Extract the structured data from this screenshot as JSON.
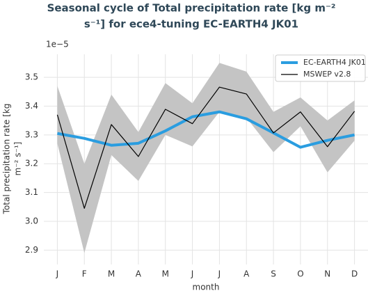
{
  "chart_data": {
    "type": "line",
    "title": [
      "Seasonal cycle of Total precipitation rate [kg m⁻²",
      "s⁻¹] for ece4-tuning EC-EARTH4 JK01"
    ],
    "x_label": "month",
    "y_label": [
      "Total precipitation rate [kg",
      "m⁻² s⁻¹]"
    ],
    "y_offset_label": "1e−5",
    "categories": [
      "J",
      "F",
      "M",
      "A",
      "M",
      "J",
      "J",
      "A",
      "S",
      "O",
      "N",
      "D"
    ],
    "series": [
      {
        "name": "EC-EARTH4 JK01",
        "color": "#2a9de0",
        "width": 4,
        "values": [
          3.305,
          3.288,
          3.264,
          3.271,
          3.314,
          3.363,
          3.38,
          3.356,
          3.307,
          3.257,
          3.281,
          3.3
        ]
      },
      {
        "name": "MSWEP v2.8",
        "color": "#000000",
        "width": 1.2,
        "values": [
          3.37,
          3.045,
          3.336,
          3.225,
          3.389,
          3.339,
          3.466,
          3.442,
          3.307,
          3.38,
          3.259,
          3.382
        ]
      }
    ],
    "band": {
      "color": "#c4c4c4",
      "lower": [
        3.27,
        2.89,
        3.23,
        3.14,
        3.3,
        3.26,
        3.38,
        3.36,
        3.24,
        3.33,
        3.17,
        3.28
      ],
      "upper": [
        3.47,
        3.2,
        3.44,
        3.31,
        3.48,
        3.41,
        3.55,
        3.52,
        3.38,
        3.43,
        3.35,
        3.42
      ]
    },
    "ylim": [
      2.85,
      3.58
    ],
    "yticks": [
      {
        "value": 2.9,
        "label": "2.9"
      },
      {
        "value": 3.0,
        "label": "3.0"
      },
      {
        "value": 3.1,
        "label": "3.1"
      },
      {
        "value": 3.2,
        "label": "3.2"
      },
      {
        "value": 3.3,
        "label": "3.3"
      },
      {
        "value": 3.4,
        "label": "3.4"
      },
      {
        "value": 3.5,
        "label": "3.5"
      }
    ],
    "grid": true,
    "legend": "upper right"
  }
}
